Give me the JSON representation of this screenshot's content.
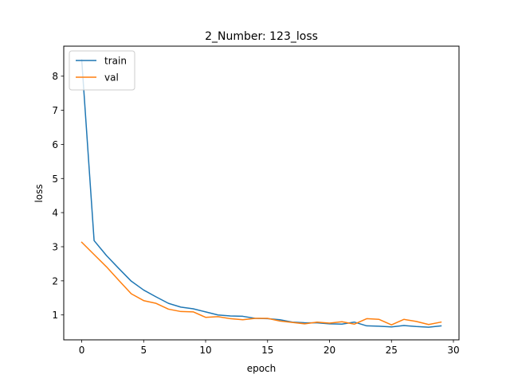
{
  "chart_data": {
    "type": "line",
    "title": "2_Number: 123_loss",
    "xlabel": "epoch",
    "ylabel": "loss",
    "xlim": [
      -1.45,
      30.45
    ],
    "ylim": [
      0.27,
      8.88
    ],
    "xticks": [
      0,
      5,
      10,
      15,
      20,
      25,
      30
    ],
    "yticks": [
      1,
      2,
      3,
      4,
      5,
      6,
      7,
      8
    ],
    "grid": false,
    "legend_position": "top-left",
    "x": [
      0,
      1,
      2,
      3,
      4,
      5,
      6,
      7,
      8,
      9,
      10,
      11,
      12,
      13,
      14,
      15,
      16,
      17,
      18,
      19,
      20,
      21,
      22,
      23,
      24,
      25,
      26,
      27,
      28,
      29
    ],
    "series": [
      {
        "name": "train",
        "color": "#1f77b4",
        "values": [
          8.48,
          3.18,
          2.74,
          2.36,
          1.99,
          1.73,
          1.53,
          1.34,
          1.23,
          1.18,
          1.09,
          1.0,
          0.97,
          0.96,
          0.9,
          0.89,
          0.86,
          0.79,
          0.77,
          0.77,
          0.74,
          0.73,
          0.79,
          0.68,
          0.67,
          0.65,
          0.69,
          0.66,
          0.64,
          0.68
        ]
      },
      {
        "name": "val",
        "color": "#ff7f0e",
        "values": [
          3.13,
          2.77,
          2.41,
          2.01,
          1.62,
          1.42,
          1.34,
          1.17,
          1.1,
          1.09,
          0.93,
          0.95,
          0.89,
          0.86,
          0.9,
          0.9,
          0.82,
          0.78,
          0.74,
          0.79,
          0.76,
          0.8,
          0.73,
          0.89,
          0.87,
          0.71,
          0.87,
          0.81,
          0.72,
          0.79
        ]
      }
    ]
  }
}
